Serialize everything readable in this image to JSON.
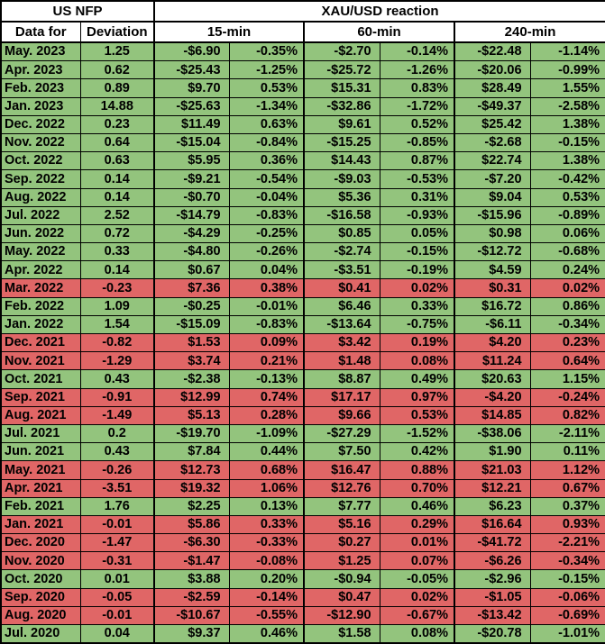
{
  "header": {
    "us_nfp": "US NFP",
    "xau_usd": "XAU/USD reaction",
    "data_for": "Data for",
    "deviation": "Deviation",
    "timeframes": [
      "15-min",
      "60-min",
      "240-min"
    ]
  },
  "colors": {
    "positive_row_bg": "#93c47d",
    "negative_row_bg": "#e06666",
    "header_bg": "#ffffff",
    "border": "#000000",
    "text": "#000000"
  },
  "chart_data": {
    "type": "table",
    "title": "US NFP deviation vs XAU/USD reaction",
    "columns": [
      "Data for",
      "Deviation",
      "15-min $",
      "15-min %",
      "60-min $",
      "60-min %",
      "240-min $",
      "240-min %"
    ],
    "rows": [
      {
        "data_for": "May. 2023",
        "deviation": 1.25,
        "tone": "positive",
        "values": [
          "-$6.90",
          "-0.35%",
          "-$2.70",
          "-0.14%",
          "-$22.48",
          "-1.14%"
        ]
      },
      {
        "data_for": "Apr. 2023",
        "deviation": 0.62,
        "tone": "positive",
        "values": [
          "-$25.43",
          "-1.25%",
          "-$25.72",
          "-1.26%",
          "-$20.06",
          "-0.99%"
        ]
      },
      {
        "data_for": "Feb. 2023",
        "deviation": 0.89,
        "tone": "positive",
        "values": [
          "$9.70",
          "0.53%",
          "$15.31",
          "0.83%",
          "$28.49",
          "1.55%"
        ]
      },
      {
        "data_for": "Jan. 2023",
        "deviation": 14.88,
        "tone": "positive",
        "values": [
          "-$25.63",
          "-1.34%",
          "-$32.86",
          "-1.72%",
          "-$49.37",
          "-2.58%"
        ]
      },
      {
        "data_for": "Dec. 2022",
        "deviation": 0.23,
        "tone": "positive",
        "values": [
          "$11.49",
          "0.63%",
          "$9.61",
          "0.52%",
          "$25.42",
          "1.38%"
        ]
      },
      {
        "data_for": "Nov. 2022",
        "deviation": 0.64,
        "tone": "positive",
        "values": [
          "-$15.04",
          "-0.84%",
          "-$15.25",
          "-0.85%",
          "-$2.68",
          "-0.15%"
        ]
      },
      {
        "data_for": "Oct. 2022",
        "deviation": 0.63,
        "tone": "positive",
        "values": [
          "$5.95",
          "0.36%",
          "$14.43",
          "0.87%",
          "$22.74",
          "1.38%"
        ]
      },
      {
        "data_for": "Sep. 2022",
        "deviation": 0.14,
        "tone": "positive",
        "values": [
          "-$9.21",
          "-0.54%",
          "-$9.03",
          "-0.53%",
          "-$7.20",
          "-0.42%"
        ]
      },
      {
        "data_for": "Aug. 2022",
        "deviation": 0.14,
        "tone": "positive",
        "values": [
          "-$0.70",
          "-0.04%",
          "$5.36",
          "0.31%",
          "$9.04",
          "0.53%"
        ]
      },
      {
        "data_for": "Jul. 2022",
        "deviation": 2.52,
        "tone": "positive",
        "values": [
          "-$14.79",
          "-0.83%",
          "-$16.58",
          "-0.93%",
          "-$15.96",
          "-0.89%"
        ]
      },
      {
        "data_for": "Jun. 2022",
        "deviation": 0.72,
        "tone": "positive",
        "values": [
          "-$4.29",
          "-0.25%",
          "$0.85",
          "0.05%",
          "$0.98",
          "0.06%"
        ]
      },
      {
        "data_for": "May. 2022",
        "deviation": 0.33,
        "tone": "positive",
        "values": [
          "-$4.80",
          "-0.26%",
          "-$2.74",
          "-0.15%",
          "-$12.72",
          "-0.68%"
        ]
      },
      {
        "data_for": "Apr. 2022",
        "deviation": 0.14,
        "tone": "positive",
        "values": [
          "$0.67",
          "0.04%",
          "-$3.51",
          "-0.19%",
          "$4.59",
          "0.24%"
        ]
      },
      {
        "data_for": "Mar. 2022",
        "deviation": -0.23,
        "tone": "negative",
        "values": [
          "$7.36",
          "0.38%",
          "$0.41",
          "0.02%",
          "$0.31",
          "0.02%"
        ]
      },
      {
        "data_for": "Feb. 2022",
        "deviation": 1.09,
        "tone": "positive",
        "values": [
          "-$0.25",
          "-0.01%",
          "$6.46",
          "0.33%",
          "$16.72",
          "0.86%"
        ]
      },
      {
        "data_for": "Jan. 2022",
        "deviation": 1.54,
        "tone": "positive",
        "values": [
          "-$15.09",
          "-0.83%",
          "-$13.64",
          "-0.75%",
          "-$6.11",
          "-0.34%"
        ]
      },
      {
        "data_for": "Dec. 2021",
        "deviation": -0.82,
        "tone": "negative",
        "values": [
          "$1.53",
          "0.09%",
          "$3.42",
          "0.19%",
          "$4.20",
          "0.23%"
        ]
      },
      {
        "data_for": "Nov. 2021",
        "deviation": -1.29,
        "tone": "negative",
        "values": [
          "$3.74",
          "0.21%",
          "$1.48",
          "0.08%",
          "$11.24",
          "0.64%"
        ]
      },
      {
        "data_for": "Oct. 2021",
        "deviation": 0.43,
        "tone": "positive",
        "values": [
          "-$2.38",
          "-0.13%",
          "$8.87",
          "0.49%",
          "$20.63",
          "1.15%"
        ]
      },
      {
        "data_for": "Sep. 2021",
        "deviation": -0.91,
        "tone": "negative",
        "values": [
          "$12.99",
          "0.74%",
          "$17.17",
          "0.97%",
          "-$4.20",
          "-0.24%"
        ]
      },
      {
        "data_for": "Aug. 2021",
        "deviation": -1.49,
        "tone": "negative",
        "values": [
          "$5.13",
          "0.28%",
          "$9.66",
          "0.53%",
          "$14.85",
          "0.82%"
        ]
      },
      {
        "data_for": "Jul. 2021",
        "deviation": 0.2,
        "tone": "positive",
        "values": [
          "-$19.70",
          "-1.09%",
          "-$27.29",
          "-1.52%",
          "-$38.06",
          "-2.11%"
        ]
      },
      {
        "data_for": "Jun. 2021",
        "deviation": 0.43,
        "tone": "positive",
        "values": [
          "$7.84",
          "0.44%",
          "$7.50",
          "0.42%",
          "$1.90",
          "0.11%"
        ]
      },
      {
        "data_for": "May. 2021",
        "deviation": -0.26,
        "tone": "negative",
        "values": [
          "$12.73",
          "0.68%",
          "$16.47",
          "0.88%",
          "$21.03",
          "1.12%"
        ]
      },
      {
        "data_for": "Apr. 2021",
        "deviation": -3.51,
        "tone": "negative",
        "values": [
          "$19.32",
          "1.06%",
          "$12.76",
          "0.70%",
          "$12.21",
          "0.67%"
        ]
      },
      {
        "data_for": "Feb. 2021",
        "deviation": 1.76,
        "tone": "positive",
        "values": [
          "$2.25",
          "0.13%",
          "$7.77",
          "0.46%",
          "$6.23",
          "0.37%"
        ]
      },
      {
        "data_for": "Jan. 2021",
        "deviation": -0.01,
        "tone": "negative",
        "values": [
          "$5.86",
          "0.33%",
          "$5.16",
          "0.29%",
          "$16.64",
          "0.93%"
        ]
      },
      {
        "data_for": "Dec. 2020",
        "deviation": -1.47,
        "tone": "negative",
        "values": [
          "-$6.30",
          "-0.33%",
          "$0.27",
          "0.01%",
          "-$41.72",
          "-2.21%"
        ]
      },
      {
        "data_for": "Nov. 2020",
        "deviation": -0.31,
        "tone": "negative",
        "values": [
          "-$1.47",
          "-0.08%",
          "$1.25",
          "0.07%",
          "-$6.26",
          "-0.34%"
        ]
      },
      {
        "data_for": "Oct. 2020",
        "deviation": 0.01,
        "tone": "positive",
        "values": [
          "$3.88",
          "0.20%",
          "-$0.94",
          "-0.05%",
          "-$2.96",
          "-0.15%"
        ]
      },
      {
        "data_for": "Sep. 2020",
        "deviation": -0.05,
        "tone": "negative",
        "values": [
          "-$2.59",
          "-0.14%",
          "$0.47",
          "0.02%",
          "-$1.05",
          "-0.06%"
        ]
      },
      {
        "data_for": "Aug. 2020",
        "deviation": -0.01,
        "tone": "negative",
        "values": [
          "-$10.67",
          "-0.55%",
          "-$12.90",
          "-0.67%",
          "-$13.42",
          "-0.69%"
        ]
      },
      {
        "data_for": "Jul. 2020",
        "deviation": 0.04,
        "tone": "positive",
        "values": [
          "$9.37",
          "0.46%",
          "$1.58",
          "0.08%",
          "-$20.78",
          "-1.01%"
        ]
      }
    ]
  }
}
